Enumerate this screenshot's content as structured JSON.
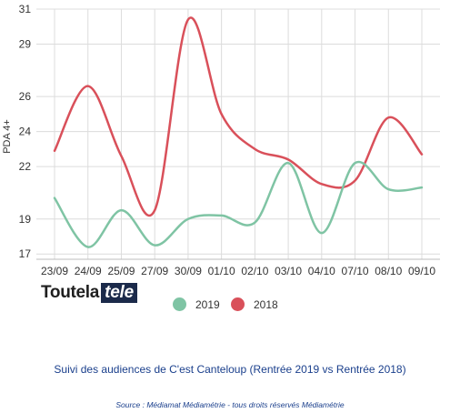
{
  "chart_data": {
    "type": "line",
    "categories": [
      "23/09",
      "24/09",
      "25/09",
      "27/09",
      "30/09",
      "01/10",
      "02/10",
      "03/10",
      "04/10",
      "07/10",
      "08/10",
      "09/10"
    ],
    "ylabel": "PDA 4+",
    "ylim": [
      16.7,
      31
    ],
    "yticks": [
      17,
      19,
      22,
      24,
      26,
      29,
      31
    ],
    "grid": true,
    "legend": "bottom",
    "series": [
      {
        "name": "2019",
        "color": "#7fc4a4",
        "values": [
          20.2,
          17.4,
          19.5,
          17.5,
          19.0,
          19.2,
          18.8,
          22.2,
          18.2,
          22.2,
          20.7,
          20.8
        ]
      },
      {
        "name": "2018",
        "color": "#d9505a",
        "values": [
          22.9,
          26.6,
          22.6,
          19.5,
          30.4,
          25.0,
          23.0,
          22.4,
          21.0,
          21.2,
          24.8,
          22.7
        ]
      }
    ]
  },
  "logo": {
    "main": "Toutela",
    "box": "tele"
  },
  "caption": "Suivi des audiences de C'est Canteloup (Rentrée 2019 vs Rentrée 2018)",
  "source": "Source : Médiamat Médiamétrie - tous droits réservés Médiamétrie"
}
